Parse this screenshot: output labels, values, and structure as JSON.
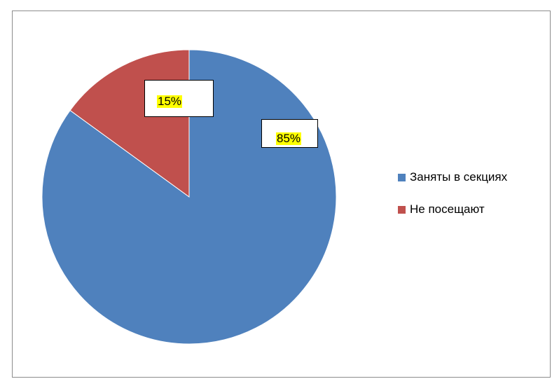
{
  "chart_data": {
    "type": "pie",
    "title": "",
    "slices": [
      {
        "name": "Заняты в секциях",
        "value": 85,
        "label": "85%",
        "color": "#4f81bd"
      },
      {
        "name": "Не посещают",
        "value": 15,
        "label": "15%",
        "color": "#c0504d"
      }
    ],
    "start_angle_deg": 0,
    "direction": "clockwise",
    "legend_position": "right",
    "data_label_highlight": "#ffff00"
  }
}
